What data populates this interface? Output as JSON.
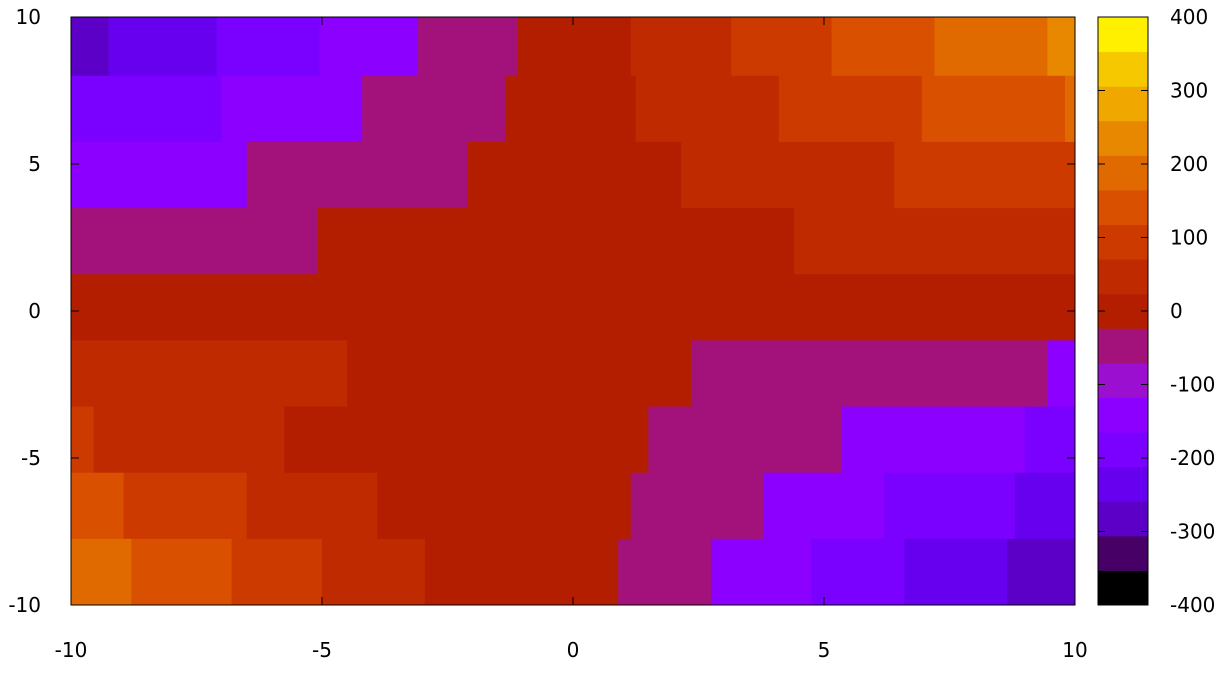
{
  "chart_data": {
    "type": "heatmap",
    "title": "",
    "xlabel": "",
    "ylabel": "",
    "xlim": [
      -10,
      10
    ],
    "ylim": [
      -10,
      10
    ],
    "xticks": [
      "-10",
      "-5",
      "0",
      "5",
      "10"
    ],
    "yticks": [
      "-10",
      "-5",
      "0",
      "5",
      "10"
    ],
    "colorbar_ticks": [
      "-400",
      "-300",
      "-200",
      "-100",
      "0",
      "100",
      "200",
      "300",
      "400"
    ],
    "clim": [
      -400,
      400
    ],
    "colormap_note": "discrete 16-level palette from black through purple, magenta, red, orange to yellow",
    "palette": [
      "#000000",
      "#460066",
      "#5c00c8",
      "#6800f0",
      "#7a00ff",
      "#8c00ff",
      "#9a0fd0",
      "#a3127a",
      "#b31e00",
      "#c02a00",
      "#cc3a00",
      "#d85000",
      "#e06a00",
      "#e88800",
      "#f0a800",
      "#f5c800",
      "#fff000"
    ],
    "grid": false,
    "legend": "colorbar-right",
    "rows": [
      {
        "y": [
          8,
          10
        ],
        "cells": [
          {
            "x": [
              -10,
              -9.25
            ],
            "v": -300
          },
          {
            "x": [
              -9.25,
              -7.1
            ],
            "v": -230
          },
          {
            "x": [
              -7.1,
              -5.05
            ],
            "v": -170
          },
          {
            "x": [
              -5.05,
              -3.1
            ],
            "v": -110
          },
          {
            "x": [
              -3.1,
              -1.1
            ],
            "v": -50
          },
          {
            "x": [
              -1.1,
              1.15
            ],
            "v": 0
          },
          {
            "x": [
              1.15,
              3.15
            ],
            "v": 50
          },
          {
            "x": [
              3.15,
              5.15
            ],
            "v": 110
          },
          {
            "x": [
              5.15,
              7.2
            ],
            "v": 170
          },
          {
            "x": [
              7.2,
              9.45
            ],
            "v": 230
          },
          {
            "x": [
              9.45,
              10
            ],
            "v": 290
          }
        ]
      },
      {
        "y": [
          5.75,
          8
        ],
        "cells": [
          {
            "x": [
              -10,
              -7.0
            ],
            "v": -170
          },
          {
            "x": [
              -7.0,
              -4.2
            ],
            "v": -110
          },
          {
            "x": [
              -4.2,
              -1.35
            ],
            "v": -50
          },
          {
            "x": [
              -1.35,
              1.25
            ],
            "v": 0
          },
          {
            "x": [
              1.25,
              4.1
            ],
            "v": 50
          },
          {
            "x": [
              4.1,
              6.95
            ],
            "v": 110
          },
          {
            "x": [
              6.95,
              9.8
            ],
            "v": 170
          },
          {
            "x": [
              9.8,
              10
            ],
            "v": 230
          }
        ]
      },
      {
        "y": [
          3.5,
          5.75
        ],
        "cells": [
          {
            "x": [
              -10,
              -6.5
            ],
            "v": -110
          },
          {
            "x": [
              -6.5,
              -2.1
            ],
            "v": -50
          },
          {
            "x": [
              -2.1,
              2.15
            ],
            "v": 0
          },
          {
            "x": [
              2.15,
              6.4
            ],
            "v": 50
          },
          {
            "x": [
              6.4,
              10
            ],
            "v": 110
          }
        ]
      },
      {
        "y": [
          1.25,
          3.5
        ],
        "cells": [
          {
            "x": [
              -10,
              -5.1
            ],
            "v": -50
          },
          {
            "x": [
              -5.1,
              4.4
            ],
            "v": 0
          },
          {
            "x": [
              4.4,
              10
            ],
            "v": 50
          }
        ]
      },
      {
        "y": [
          -1.0,
          1.25
        ],
        "cells": [
          {
            "x": [
              -10,
              10
            ],
            "v": 0
          }
        ]
      },
      {
        "y": [
          -3.25,
          -1.0
        ],
        "cells": [
          {
            "x": [
              -10,
              -4.5
            ],
            "v": 50
          },
          {
            "x": [
              -4.5,
              2.35
            ],
            "v": 0
          },
          {
            "x": [
              2.35,
              9.45
            ],
            "v": -50
          },
          {
            "x": [
              9.45,
              10
            ],
            "v": -110
          }
        ]
      },
      {
        "y": [
          -5.5,
          -3.25
        ],
        "cells": [
          {
            "x": [
              -10,
              -9.55
            ],
            "v": 110
          },
          {
            "x": [
              -9.55,
              -5.75
            ],
            "v": 50
          },
          {
            "x": [
              -5.75,
              -2.1
            ],
            "v": 0
          },
          {
            "x": [
              -2.1,
              1.5
            ],
            "v": 0
          },
          {
            "x": [
              1.5,
              5.35
            ],
            "v": -50
          },
          {
            "x": [
              5.35,
              9.0
            ],
            "v": -110
          },
          {
            "x": [
              9.0,
              10
            ],
            "v": -170
          }
        ]
      },
      {
        "y": [
          -7.75,
          -5.5
        ],
        "cells": [
          {
            "x": [
              -10,
              -8.95
            ],
            "v": 170
          },
          {
            "x": [
              -8.95,
              -6.5
            ],
            "v": 110
          },
          {
            "x": [
              -6.5,
              -3.9
            ],
            "v": 50
          },
          {
            "x": [
              -3.9,
              -1.3
            ],
            "v": 0
          },
          {
            "x": [
              -1.3,
              1.15
            ],
            "v": 0
          },
          {
            "x": [
              1.15,
              3.8
            ],
            "v": -50
          },
          {
            "x": [
              3.8,
              6.2
            ],
            "v": -110
          },
          {
            "x": [
              6.2,
              8.8
            ],
            "v": -170
          },
          {
            "x": [
              8.8,
              10
            ],
            "v": -230
          }
        ]
      },
      {
        "y": [
          -10,
          -7.75
        ],
        "cells": [
          {
            "x": [
              -10,
              -8.8
            ],
            "v": 230
          },
          {
            "x": [
              -8.8,
              -6.8
            ],
            "v": 170
          },
          {
            "x": [
              -6.8,
              -5.0
            ],
            "v": 110
          },
          {
            "x": [
              -5.0,
              -2.95
            ],
            "v": 50
          },
          {
            "x": [
              -2.95,
              -1.1
            ],
            "v": 0
          },
          {
            "x": [
              -1.1,
              0.9
            ],
            "v": 0
          },
          {
            "x": [
              0.9,
              2.75
            ],
            "v": -50
          },
          {
            "x": [
              2.75,
              4.75
            ],
            "v": -110
          },
          {
            "x": [
              4.75,
              6.6
            ],
            "v": -170
          },
          {
            "x": [
              6.6,
              8.65
            ],
            "v": -230
          },
          {
            "x": [
              8.65,
              10
            ],
            "v": -290
          }
        ]
      }
    ]
  }
}
